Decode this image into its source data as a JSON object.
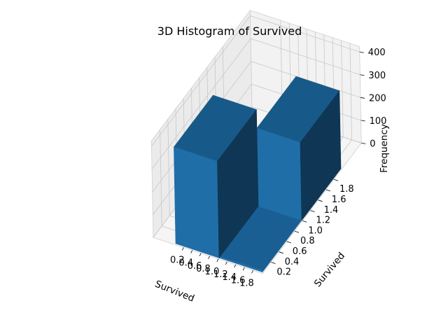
{
  "chart_data": {
    "type": "bar3d",
    "title": "3D Histogram of Survived",
    "xlabel": "Survived",
    "ylabel": "Survived",
    "zlabel": "Frequency",
    "xlim": [
      0,
      2
    ],
    "ylim": [
      0,
      2
    ],
    "zlim": [
      0,
      424
    ],
    "xticks": [
      "0.2",
      "0.4",
      "0.6",
      "0.8",
      "1.0",
      "1.2",
      "1.4",
      "1.6",
      "1.8"
    ],
    "yticks": [
      "0.2",
      "0.4",
      "0.6",
      "0.8",
      "1.0",
      "1.2",
      "1.4",
      "1.6",
      "1.8"
    ],
    "zticks": [
      "0",
      "100",
      "200",
      "300",
      "400"
    ],
    "grid": true,
    "bars": [
      {
        "x": 0.0,
        "y": 0.0,
        "count": 549
      },
      {
        "x": 1.0,
        "y": 1.0,
        "count": 342
      }
    ],
    "bar_color": "#1f77b4"
  }
}
